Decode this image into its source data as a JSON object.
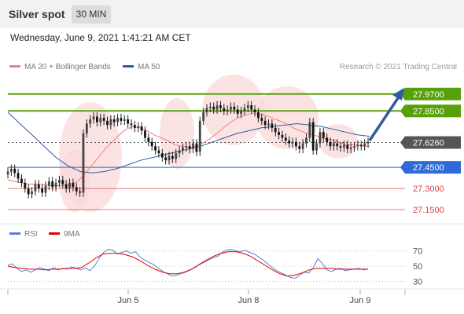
{
  "header": {
    "title": "Silver spot",
    "timeframe": "30 MIN"
  },
  "datetime": "Wednesday, June 9, 2021 1:41:21 AM CET",
  "legend": {
    "ma20": {
      "label": "MA 20 + Bollinger Bands",
      "color": "#f08080"
    },
    "ma50": {
      "label": "MA 50",
      "color": "#2f5b9e"
    },
    "credit": "Research © 2021 Trading Central"
  },
  "rsi_legend": {
    "rsi": {
      "label": "RSI",
      "color": "#5b7fd8"
    },
    "ma9": {
      "label": "9MA",
      "color": "#e00000"
    }
  },
  "levels": [
    {
      "value": 27.97,
      "label": "27.9700",
      "color": "#58a00a",
      "style": "resistance"
    },
    {
      "value": 27.85,
      "label": "27.8500",
      "color": "#58a00a",
      "style": "resistance"
    },
    {
      "value": 27.626,
      "label": "27.6260",
      "color": "#333333",
      "style": "current"
    },
    {
      "value": 27.45,
      "label": "27.4500",
      "color": "#2e6ad8",
      "style": "pivot"
    },
    {
      "value": 27.3,
      "label": "27.3000",
      "color": "#e04040",
      "style": "support"
    },
    {
      "value": 27.15,
      "label": "27.1500",
      "color": "#e04040",
      "style": "support"
    }
  ],
  "chart_data": [
    {
      "type": "line",
      "subtype": "candlestick",
      "title": "Silver spot",
      "x_labels": [
        "Jun 5",
        "Jun 8",
        "Jun 9"
      ],
      "ylim": [
        27.05,
        28.08
      ],
      "close": [
        27.42,
        27.44,
        27.41,
        27.37,
        27.34,
        27.3,
        27.26,
        27.28,
        27.33,
        27.3,
        27.27,
        27.32,
        27.35,
        27.31,
        27.34,
        27.36,
        27.33,
        27.3,
        27.34,
        27.31,
        27.28,
        27.27,
        27.69,
        27.76,
        27.79,
        27.81,
        27.77,
        27.8,
        27.78,
        27.75,
        27.79,
        27.77,
        27.8,
        27.78,
        27.79,
        27.76,
        27.75,
        27.73,
        27.74,
        27.71,
        27.66,
        27.63,
        27.6,
        27.57,
        27.55,
        27.52,
        27.5,
        27.53,
        27.51,
        27.55,
        27.57,
        27.59,
        27.6,
        27.58,
        27.62,
        27.56,
        27.78,
        27.84,
        27.87,
        27.88,
        27.86,
        27.89,
        27.87,
        27.85,
        27.86,
        27.88,
        27.86,
        27.83,
        27.85,
        27.87,
        27.89,
        27.86,
        27.84,
        27.8,
        27.78,
        27.75,
        27.76,
        27.73,
        27.7,
        27.68,
        27.66,
        27.64,
        27.62,
        27.63,
        27.6,
        27.58,
        27.62,
        27.66,
        27.77,
        27.57,
        27.62,
        27.7,
        27.66,
        27.63,
        27.6,
        27.62,
        27.6,
        27.59,
        27.61,
        27.58,
        27.59,
        27.6,
        27.61,
        27.6,
        27.62,
        27.63
      ],
      "series": [
        {
          "name": "MA 20 + Bollinger Bands",
          "values": [
            27.36,
            27.35,
            27.34,
            27.33,
            27.33,
            27.33,
            27.32,
            27.32,
            27.32,
            27.33,
            27.35,
            27.4,
            27.46,
            27.52,
            27.58,
            27.63,
            27.68,
            27.72,
            27.74,
            27.73,
            27.71,
            27.68,
            27.66,
            27.64,
            27.61,
            27.6,
            27.59,
            27.6,
            27.62,
            27.65,
            27.69,
            27.73,
            27.77,
            27.8,
            27.82,
            27.83,
            27.83,
            27.82,
            27.8,
            27.78,
            27.76,
            27.73,
            27.71,
            27.69,
            27.68,
            27.66,
            27.65,
            27.64,
            27.62,
            27.61,
            27.61,
            27.6,
            27.6
          ]
        },
        {
          "name": "MA 50",
          "values": [
            27.84,
            27.76,
            27.68,
            27.6,
            27.52,
            27.46,
            27.42,
            27.41,
            27.42,
            27.44,
            27.47,
            27.5,
            27.52,
            27.54,
            27.56,
            27.58,
            27.6,
            27.63,
            27.66,
            27.69,
            27.71,
            27.73,
            27.74,
            27.75,
            27.76,
            27.75,
            27.74,
            27.72,
            27.7,
            27.68,
            27.67
          ]
        }
      ]
    },
    {
      "type": "line",
      "title": "RSI",
      "y_ticks": [
        70,
        50,
        30
      ],
      "ylim": [
        20,
        80
      ],
      "series": [
        {
          "name": "RSI",
          "values": [
            52,
            53,
            47,
            43,
            45,
            42,
            45,
            48,
            46,
            44,
            48,
            45,
            47,
            46,
            49,
            47,
            45,
            48,
            44,
            50,
            60,
            68,
            72,
            71,
            66,
            68,
            70,
            67,
            69,
            62,
            58,
            55,
            52,
            47,
            43,
            40,
            37,
            38,
            40,
            42,
            45,
            48,
            52,
            55,
            58,
            61,
            63,
            68,
            71,
            72,
            70,
            69,
            71,
            68,
            66,
            62,
            58,
            53,
            48,
            44,
            41,
            38,
            35,
            34,
            38,
            42,
            41,
            48,
            60,
            53,
            45,
            43,
            46,
            47,
            44,
            45,
            46,
            47,
            45,
            46
          ]
        },
        {
          "name": "9MA",
          "values": [
            50,
            48,
            47,
            46,
            46,
            45,
            46,
            46,
            47,
            47,
            48,
            54,
            61,
            66,
            67,
            67,
            65,
            62,
            57,
            51,
            46,
            42,
            40,
            40,
            42,
            46,
            52,
            58,
            63,
            67,
            69,
            69,
            67,
            63,
            57,
            51,
            45,
            40,
            37,
            38,
            41,
            45,
            47,
            47,
            47,
            46,
            46,
            46,
            46,
            46
          ]
        }
      ]
    }
  ]
}
